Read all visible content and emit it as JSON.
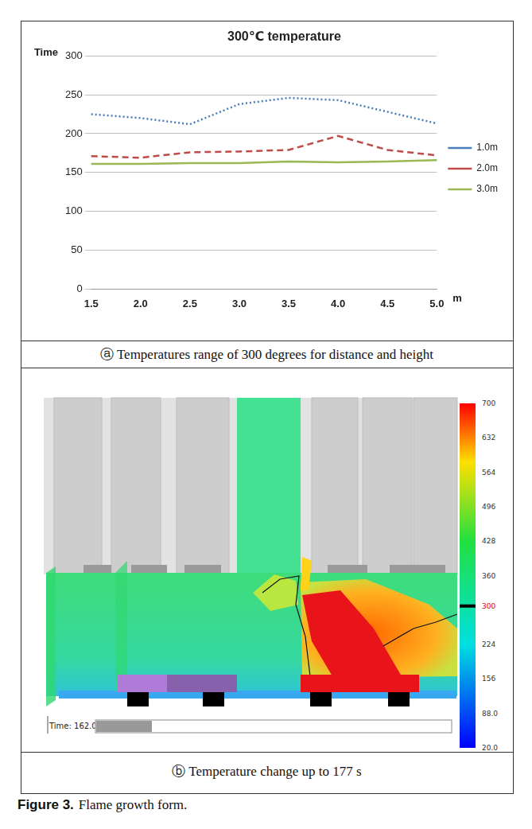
{
  "chart_data": {
    "type": "line",
    "title": "300℃ temperature",
    "y_label": "Time",
    "x_label": "m",
    "categories": [
      "1.5",
      "2.0",
      "2.5",
      "3.0",
      "3.5",
      "4.0",
      "4.5",
      "5.0"
    ],
    "series": [
      {
        "name": "1.0m",
        "color": "#4a7ebb",
        "line_style": "dotted",
        "values": [
          225,
          220,
          212,
          238,
          246,
          243,
          228,
          213
        ]
      },
      {
        "name": "2.0m",
        "color": "#be4b48",
        "line_style": "dashed",
        "values": [
          171,
          169,
          176,
          177,
          179,
          197,
          179,
          172
        ]
      },
      {
        "name": "3.0m",
        "color": "#98b954",
        "line_style": "solid",
        "values": [
          161,
          161,
          162,
          162,
          164,
          163,
          164,
          166
        ]
      }
    ],
    "marker": "none",
    "ylim": [
      0,
      300
    ],
    "yticks": [
      0,
      50,
      100,
      150,
      200,
      250,
      300
    ],
    "grid": true,
    "legend": "right"
  },
  "panels": [
    {
      "caption": "ⓐ Temperatures range of 300 degrees for distance and height"
    },
    {
      "caption": "ⓑ Temperature change up to 177 s",
      "time_label": "Time: 162.0",
      "colorbar": {
        "range": [
          20,
          700
        ],
        "ticks": [
          700,
          632,
          564,
          496,
          428,
          360,
          224,
          156,
          {
            "value": 88,
            "label": "88.0"
          },
          {
            "value": 20,
            "label": "20.0"
          }
        ],
        "marked_value": 300
      }
    }
  ],
  "figure_caption": {
    "label": "Figure 3.",
    "text": "Flame growth form."
  }
}
